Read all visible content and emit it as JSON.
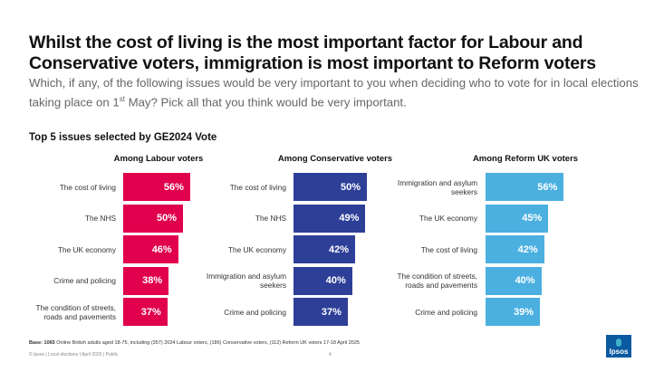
{
  "header": {
    "title": "Whilst the cost of living is the most important factor for Labour and Conservative voters, immigration is most important to Reform voters",
    "subtitle_before": "Which, if any, of the following issues would be very important to you when deciding who to vote for in local elections taking place on 1",
    "subtitle_sup": "st",
    "subtitle_after": " May? Pick all that you think would be very important."
  },
  "chart_data": {
    "type": "bar",
    "title": "Top 5 issues selected by GE2024 Vote",
    "unit": "%",
    "panels": [
      {
        "name": "Among Labour voters",
        "color": "#e0004d",
        "categories": [
          "The cost of living",
          "The NHS",
          "The UK economy",
          "Crime and policing",
          "The condition of streets, roads and pavements"
        ],
        "values": [
          56,
          50,
          46,
          38,
          37
        ]
      },
      {
        "name": "Among Conservative voters",
        "color": "#2e3f98",
        "categories": [
          "The cost of living",
          "The NHS",
          "The UK economy",
          "Immigration and asylum seekers",
          "Crime and policing"
        ],
        "values": [
          50,
          49,
          42,
          40,
          37
        ]
      },
      {
        "name": "Among Reform UK voters",
        "color": "#4bb0e0",
        "categories": [
          "Immigration and asylum seekers",
          "The UK economy",
          "The cost of living",
          "The condition of streets, roads and pavements",
          "Crime and policing"
        ],
        "values": [
          56,
          45,
          42,
          40,
          39
        ]
      }
    ]
  },
  "footer": {
    "base_label": "Base: 1065",
    "base_text": " Online British adults aged 18-75, including (357) 2024 Labour voters, (186) Conservative voters, (112) Reform UK voters 17-18 April 2025",
    "source": "© Ipsos | Local elections | April 2025 | Public",
    "page": "4",
    "logo": "Ipsos"
  }
}
